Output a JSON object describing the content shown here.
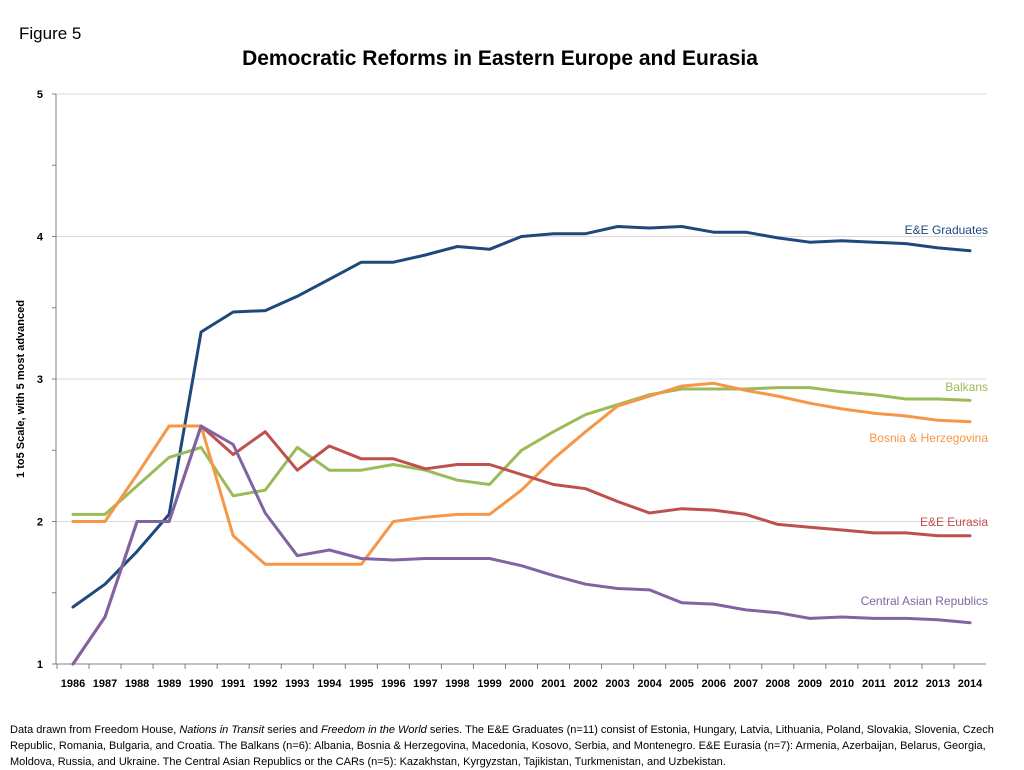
{
  "figure_label": "Figure 5",
  "footnote": {
    "p1": "Data drawn from  Freedom House, ",
    "i1": "Nations in Transit",
    "p2": " series and ",
    "i2": "Freedom in the World",
    "p3": " series. The E&E Graduates (n=11) consist of Estonia, Hungary, Latvia, Lithuania, Poland, Slovakia, Slovenia, Czech Republic, Romania, Bulgaria, and Croatia. The Balkans (n=6): Albania, Bosnia & Herzegovina, Macedonia, Kosovo, Serbia, and Montenegro. E&E Eurasia (n=7): Armenia, Azerbaijan, Belarus, Georgia, Moldova, Russia, and Ukraine.  The Central Asian Republics or the CARs (n=5): Kazakhstan, Kyrgyzstan, Tajikistan, Turkmenistan, and Uzbekistan."
  },
  "chart_data": {
    "type": "line",
    "title": "Democratic Reforms in Eastern Europe and Eurasia",
    "xlabel": "",
    "ylabel": "1 to5 Scale, with 5 most advanced",
    "ylim": [
      1,
      5
    ],
    "yticks": [
      "1",
      "2",
      "3",
      "4",
      "5"
    ],
    "grid": "horizontal",
    "legend": "inline labels at right end of lines",
    "x": [
      "1986",
      "1987",
      "1988",
      "1989",
      "1990",
      "1991",
      "1992",
      "1993",
      "1994",
      "1995",
      "1996",
      "1997",
      "1998",
      "1999",
      "2000",
      "2001",
      "2002",
      "2003",
      "2004",
      "2005",
      "2006",
      "2007",
      "2008",
      "2009",
      "2010",
      "2011",
      "2012",
      "2013",
      "2014"
    ],
    "series": [
      {
        "name": "E&E Graduates",
        "color": "#1f497d",
        "values": [
          1.4,
          1.56,
          1.79,
          2.05,
          3.33,
          3.47,
          3.48,
          3.58,
          3.7,
          3.82,
          3.82,
          3.87,
          3.93,
          3.91,
          4.0,
          4.02,
          4.02,
          4.07,
          4.06,
          4.07,
          4.03,
          4.03,
          3.99,
          3.96,
          3.97,
          3.96,
          3.95,
          3.92,
          3.9
        ]
      },
      {
        "name": "Balkans",
        "color": "#9bbb59",
        "values": [
          2.05,
          2.05,
          2.25,
          2.45,
          2.52,
          2.18,
          2.22,
          2.52,
          2.36,
          2.36,
          2.4,
          2.36,
          2.29,
          2.26,
          2.5,
          2.63,
          2.75,
          2.82,
          2.89,
          2.93,
          2.93,
          2.93,
          2.94,
          2.94,
          2.91,
          2.89,
          2.86,
          2.86,
          2.85
        ]
      },
      {
        "name": "Bosnia & Herzegovina",
        "color": "#f79646",
        "values": [
          2.0,
          2.0,
          2.33,
          2.67,
          2.67,
          1.9,
          1.7,
          1.7,
          1.7,
          1.7,
          2.0,
          2.03,
          2.05,
          2.05,
          2.22,
          2.44,
          2.63,
          2.81,
          2.88,
          2.95,
          2.97,
          2.92,
          2.88,
          2.83,
          2.79,
          2.76,
          2.74,
          2.71,
          2.7
        ]
      },
      {
        "name": "E&E Eurasia",
        "color": "#c0504d",
        "values": [
          1.0,
          1.33,
          2.0,
          2.0,
          2.67,
          2.47,
          2.63,
          2.36,
          2.53,
          2.44,
          2.44,
          2.37,
          2.4,
          2.4,
          2.33,
          2.26,
          2.23,
          2.14,
          2.06,
          2.09,
          2.08,
          2.05,
          1.98,
          1.96,
          1.94,
          1.92,
          1.92,
          1.9,
          1.9
        ]
      },
      {
        "name": "Central Asian Republics",
        "color": "#8064a2",
        "values": [
          1.0,
          1.33,
          2.0,
          2.0,
          2.67,
          2.54,
          2.06,
          1.76,
          1.8,
          1.74,
          1.73,
          1.74,
          1.74,
          1.74,
          1.69,
          1.62,
          1.56,
          1.53,
          1.52,
          1.43,
          1.42,
          1.38,
          1.36,
          1.32,
          1.33,
          1.32,
          1.32,
          1.31,
          1.29
        ]
      }
    ]
  }
}
